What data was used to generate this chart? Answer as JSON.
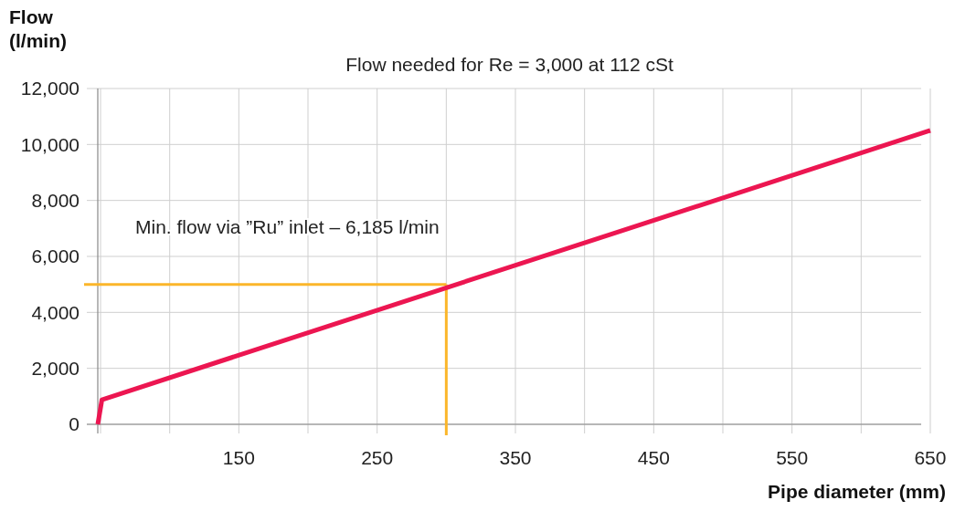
{
  "chart_data": {
    "type": "line",
    "title": "Flow needed for Re = 3,000 at 112 cSt",
    "xlabel": "Pipe diameter (mm)",
    "ylabel": "Flow\n(l/min)",
    "x": [
      48,
      51,
      650
    ],
    "series": [
      {
        "color": "#ec1651",
        "values": [
          0,
          880,
          10500
        ]
      }
    ],
    "xlim": [
      48,
      652
    ],
    "xticks": [
      {
        "value": 50,
        "label": null
      },
      {
        "value": 100,
        "label": null
      },
      150,
      {
        "value": 200,
        "label": null
      },
      250,
      {
        "value": 300,
        "label": null
      },
      350,
      {
        "value": 400,
        "label": null
      },
      450,
      {
        "value": 500,
        "label": null
      },
      550,
      {
        "value": 600,
        "label": null
      },
      650
    ],
    "ylim": [
      0,
      12000
    ],
    "yticks": [
      {
        "value": 0,
        "label": "0"
      },
      {
        "value": 2000,
        "label": "2,000"
      },
      {
        "value": 4000,
        "label": "4,000"
      },
      {
        "value": 6000,
        "label": "6,000"
      },
      {
        "value": 8000,
        "label": "8,000"
      },
      {
        "value": 10000,
        "label": "10,000"
      },
      {
        "value": 12000,
        "label": "12,000"
      }
    ],
    "grid": true,
    "ref_lines": [
      {
        "axis": "y",
        "value": 5000,
        "color": "#fbb62a"
      },
      {
        "axis": "x",
        "value": 300,
        "color": "#fbb62a"
      }
    ],
    "annotations": [
      "Min. flow via ”Ru” inlet – 6,185 l/min"
    ]
  }
}
